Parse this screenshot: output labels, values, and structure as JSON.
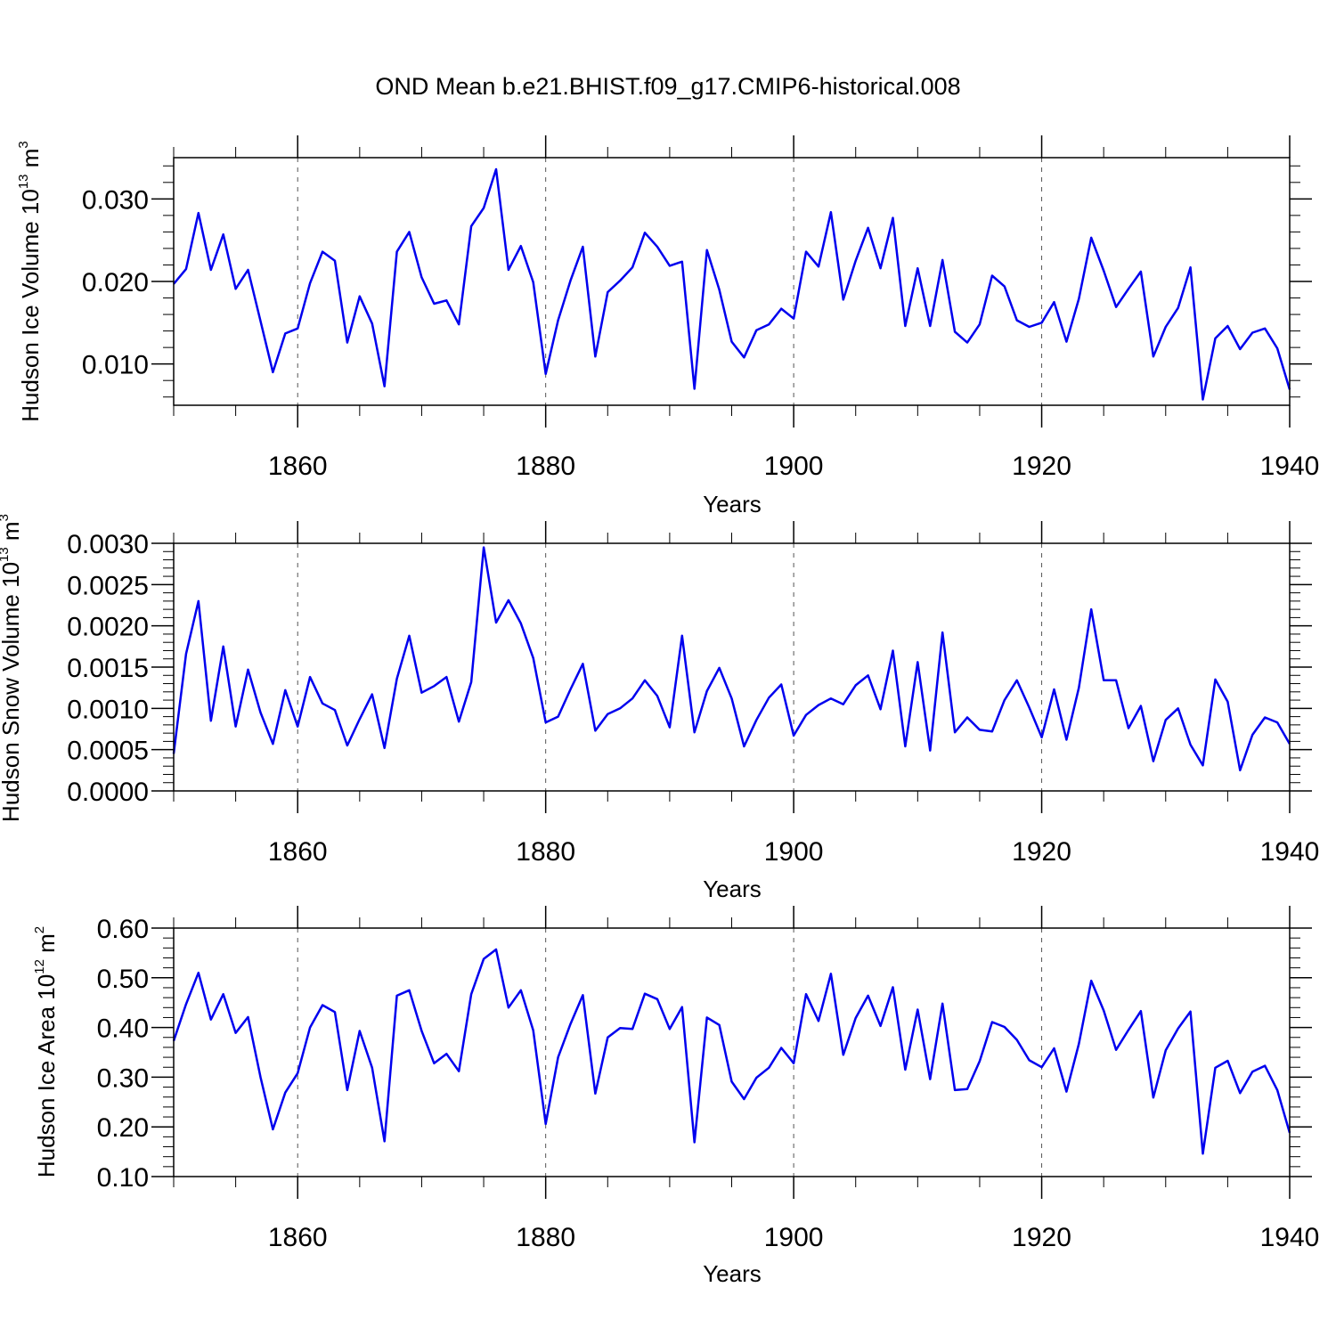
{
  "figure_title": "OND Mean b.e21.BHIST.f09_g17.CMIP6-historical.008",
  "colors": {
    "line": "#0000ee",
    "axes": "#000000",
    "grid": "#555555"
  },
  "chart_data": [
    {
      "type": "line",
      "title": "",
      "xlabel": "Years",
      "ylabel": {
        "text": "Hudson Ice Volume 10",
        "sup": "13",
        "unit": " m",
        "unit_sup": "3"
      },
      "xlim": [
        1850,
        1940
      ],
      "ylim": [
        0.005,
        0.035
      ],
      "x_ticks": [
        1860,
        1880,
        1900,
        1920,
        1940
      ],
      "x_tick_labels": [
        "1860",
        "1880",
        "1900",
        "1920",
        "1940"
      ],
      "y_ticks": [
        0.01,
        0.02,
        0.03
      ],
      "y_tick_labels": [
        "0.010",
        "0.020",
        "0.030"
      ],
      "grid": "vertical dashed at major x ticks",
      "series": [
        {
          "name": "Hudson Ice Volume",
          "x": [
            1850,
            1851,
            1852,
            1853,
            1854,
            1855,
            1856,
            1857,
            1858,
            1859,
            1860,
            1861,
            1862,
            1863,
            1864,
            1865,
            1866,
            1867,
            1868,
            1869,
            1870,
            1871,
            1872,
            1873,
            1874,
            1875,
            1876,
            1877,
            1878,
            1879,
            1880,
            1881,
            1882,
            1883,
            1884,
            1885,
            1886,
            1887,
            1888,
            1889,
            1890,
            1891,
            1892,
            1893,
            1894,
            1895,
            1896,
            1897,
            1898,
            1899,
            1900,
            1901,
            1902,
            1903,
            1904,
            1905,
            1906,
            1907,
            1908,
            1909,
            1910,
            1911,
            1912,
            1913,
            1914,
            1915,
            1916,
            1917,
            1918,
            1919,
            1920,
            1921,
            1922,
            1923,
            1924,
            1925,
            1926,
            1927,
            1928,
            1929,
            1930,
            1931,
            1932,
            1933,
            1934,
            1935,
            1936,
            1937,
            1938,
            1939,
            1940
          ],
          "values": [
            0.0197,
            0.0215,
            0.0283,
            0.0214,
            0.0257,
            0.0191,
            0.0214,
            0.0152,
            0.009,
            0.0137,
            0.0143,
            0.0198,
            0.0236,
            0.0225,
            0.0126,
            0.0182,
            0.0149,
            0.0073,
            0.0236,
            0.026,
            0.0205,
            0.0173,
            0.0177,
            0.0148,
            0.0267,
            0.0289,
            0.0336,
            0.0214,
            0.0243,
            0.0199,
            0.0088,
            0.0153,
            0.0201,
            0.0242,
            0.0109,
            0.0187,
            0.0201,
            0.0217,
            0.0259,
            0.0242,
            0.0219,
            0.0224,
            0.007,
            0.0238,
            0.019,
            0.0127,
            0.0108,
            0.0141,
            0.0148,
            0.0167,
            0.0155,
            0.0236,
            0.0218,
            0.0284,
            0.0178,
            0.0225,
            0.0265,
            0.0216,
            0.0277,
            0.0146,
            0.0216,
            0.0146,
            0.0226,
            0.0139,
            0.0126,
            0.0148,
            0.0207,
            0.0194,
            0.0153,
            0.0145,
            0.015,
            0.0175,
            0.0127,
            0.0179,
            0.0253,
            0.0213,
            0.0169,
            0.0191,
            0.0212,
            0.0109,
            0.0145,
            0.0168,
            0.0217,
            0.0057,
            0.0131,
            0.0146,
            0.0118,
            0.0138,
            0.0143,
            0.0119,
            0.0069
          ]
        }
      ]
    },
    {
      "type": "line",
      "title": "",
      "xlabel": "Years",
      "ylabel": {
        "text": "Hudson Snow Volume 10",
        "sup": "13",
        "unit": " m",
        "unit_sup": "3"
      },
      "xlim": [
        1850,
        1940
      ],
      "ylim": [
        0.0,
        0.003
      ],
      "x_ticks": [
        1860,
        1880,
        1900,
        1920,
        1940
      ],
      "x_tick_labels": [
        "1860",
        "1880",
        "1900",
        "1920",
        "1940"
      ],
      "y_ticks": [
        0.0,
        0.0005,
        0.001,
        0.0015,
        0.002,
        0.0025,
        0.003
      ],
      "y_tick_labels": [
        "0.0000",
        "0.0005",
        "0.0010",
        "0.0015",
        "0.0020",
        "0.0025",
        "0.0030"
      ],
      "grid": "vertical dashed at major x ticks",
      "series": [
        {
          "name": "Hudson Snow Volume",
          "x": [
            1850,
            1851,
            1852,
            1853,
            1854,
            1855,
            1856,
            1857,
            1858,
            1859,
            1860,
            1861,
            1862,
            1863,
            1864,
            1865,
            1866,
            1867,
            1868,
            1869,
            1870,
            1871,
            1872,
            1873,
            1874,
            1875,
            1876,
            1877,
            1878,
            1879,
            1880,
            1881,
            1882,
            1883,
            1884,
            1885,
            1886,
            1887,
            1888,
            1889,
            1890,
            1891,
            1892,
            1893,
            1894,
            1895,
            1896,
            1897,
            1898,
            1899,
            1900,
            1901,
            1902,
            1903,
            1904,
            1905,
            1906,
            1907,
            1908,
            1909,
            1910,
            1911,
            1912,
            1913,
            1914,
            1915,
            1916,
            1917,
            1918,
            1919,
            1920,
            1921,
            1922,
            1923,
            1924,
            1925,
            1926,
            1927,
            1928,
            1929,
            1930,
            1931,
            1932,
            1933,
            1934,
            1935,
            1936,
            1937,
            1938,
            1939,
            1940
          ],
          "values": [
            0.00045,
            0.00166,
            0.0023,
            0.00085,
            0.00175,
            0.00078,
            0.00147,
            0.00095,
            0.00057,
            0.00122,
            0.00078,
            0.00138,
            0.00106,
            0.00098,
            0.00055,
            0.00087,
            0.00117,
            0.00052,
            0.00136,
            0.00188,
            0.00119,
            0.00127,
            0.00138,
            0.00084,
            0.00132,
            0.00295,
            0.00204,
            0.00231,
            0.00203,
            0.00161,
            0.00083,
            0.0009,
            0.00123,
            0.00154,
            0.00073,
            0.00093,
            0.001,
            0.00112,
            0.00134,
            0.00115,
            0.00077,
            0.00188,
            0.00071,
            0.00121,
            0.00149,
            0.00112,
            0.00054,
            0.00086,
            0.00113,
            0.00129,
            0.00067,
            0.00092,
            0.00104,
            0.00112,
            0.00105,
            0.00128,
            0.0014,
            0.00099,
            0.0017,
            0.00054,
            0.00156,
            0.00049,
            0.00192,
            0.00071,
            0.00089,
            0.00074,
            0.00072,
            0.0011,
            0.00134,
            0.00101,
            0.00065,
            0.00123,
            0.00062,
            0.00125,
            0.0022,
            0.00134,
            0.00134,
            0.00076,
            0.00103,
            0.00036,
            0.00086,
            0.001,
            0.00056,
            0.00031,
            0.00135,
            0.00108,
            0.00025,
            0.00068,
            0.00089,
            0.00083,
            0.00057
          ]
        }
      ]
    },
    {
      "type": "line",
      "title": "",
      "xlabel": "Years",
      "ylabel": {
        "text": "Hudson Ice Area 10",
        "sup": "12",
        "unit": " m",
        "unit_sup": "2"
      },
      "xlim": [
        1850,
        1940
      ],
      "ylim": [
        0.1,
        0.6
      ],
      "x_ticks": [
        1860,
        1880,
        1900,
        1920,
        1940
      ],
      "x_tick_labels": [
        "1860",
        "1880",
        "1900",
        "1920",
        "1940"
      ],
      "y_ticks": [
        0.1,
        0.2,
        0.3,
        0.4,
        0.5,
        0.6
      ],
      "y_tick_labels": [
        "0.10",
        "0.20",
        "0.30",
        "0.40",
        "0.50",
        "0.60"
      ],
      "grid": "vertical dashed at major x ticks",
      "series": [
        {
          "name": "Hudson Ice Area",
          "x": [
            1850,
            1851,
            1852,
            1853,
            1854,
            1855,
            1856,
            1857,
            1858,
            1859,
            1860,
            1861,
            1862,
            1863,
            1864,
            1865,
            1866,
            1867,
            1868,
            1869,
            1870,
            1871,
            1872,
            1873,
            1874,
            1875,
            1876,
            1877,
            1878,
            1879,
            1880,
            1881,
            1882,
            1883,
            1884,
            1885,
            1886,
            1887,
            1888,
            1889,
            1890,
            1891,
            1892,
            1893,
            1894,
            1895,
            1896,
            1897,
            1898,
            1899,
            1900,
            1901,
            1902,
            1903,
            1904,
            1905,
            1906,
            1907,
            1908,
            1909,
            1910,
            1911,
            1912,
            1913,
            1914,
            1915,
            1916,
            1917,
            1918,
            1919,
            1920,
            1921,
            1922,
            1923,
            1924,
            1925,
            1926,
            1927,
            1928,
            1929,
            1930,
            1931,
            1932,
            1933,
            1934,
            1935,
            1936,
            1937,
            1938,
            1939,
            1940
          ],
          "values": [
            0.373,
            0.447,
            0.51,
            0.416,
            0.467,
            0.389,
            0.421,
            0.3,
            0.195,
            0.269,
            0.308,
            0.4,
            0.445,
            0.431,
            0.274,
            0.393,
            0.319,
            0.171,
            0.464,
            0.475,
            0.393,
            0.328,
            0.347,
            0.312,
            0.467,
            0.538,
            0.557,
            0.44,
            0.475,
            0.394,
            0.206,
            0.34,
            0.407,
            0.465,
            0.267,
            0.38,
            0.399,
            0.397,
            0.468,
            0.457,
            0.397,
            0.441,
            0.169,
            0.42,
            0.405,
            0.291,
            0.256,
            0.299,
            0.319,
            0.359,
            0.328,
            0.467,
            0.413,
            0.508,
            0.345,
            0.419,
            0.464,
            0.403,
            0.481,
            0.315,
            0.436,
            0.296,
            0.448,
            0.274,
            0.276,
            0.332,
            0.411,
            0.401,
            0.375,
            0.334,
            0.32,
            0.358,
            0.271,
            0.367,
            0.494,
            0.434,
            0.355,
            0.395,
            0.433,
            0.259,
            0.354,
            0.398,
            0.432,
            0.146,
            0.319,
            0.333,
            0.268,
            0.311,
            0.323,
            0.274,
            0.188
          ]
        }
      ]
    }
  ]
}
